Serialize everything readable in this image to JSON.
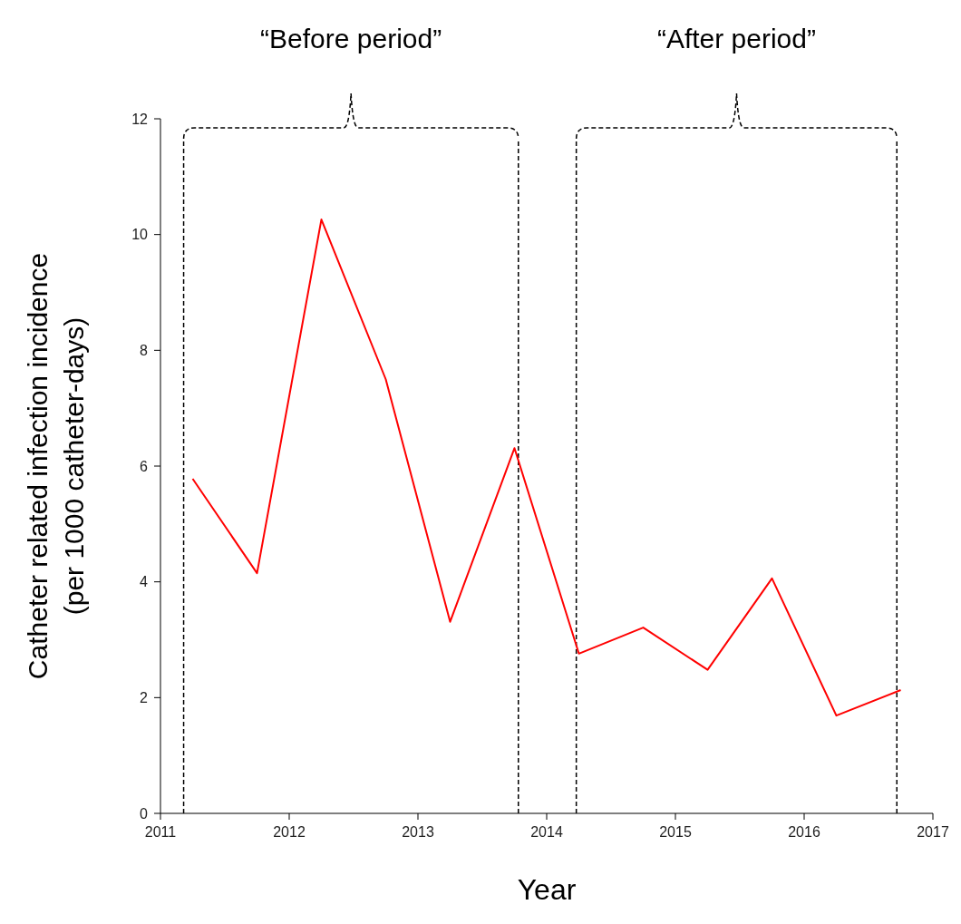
{
  "chart_data": {
    "type": "line",
    "xlabel": "Year",
    "ylabel": "Catheter related infection incidence\n(per 1000 catheter-days)",
    "x": [
      2011.25,
      2011.75,
      2012.25,
      2012.75,
      2013.25,
      2013.75,
      2014.25,
      2014.75,
      2015.25,
      2015.75,
      2016.25,
      2016.75
    ],
    "series": [
      {
        "color": "#ff0000",
        "values": [
          5.78,
          4.15,
          10.26,
          7.5,
          3.31,
          6.31,
          2.76,
          3.21,
          2.48,
          4.06,
          1.69,
          2.13
        ]
      }
    ],
    "xlim": [
      2011,
      2017
    ],
    "xticks": [
      2011,
      2012,
      2013,
      2014,
      2015,
      2016,
      2017
    ],
    "ylim": [
      0,
      12
    ],
    "yticks": [
      0,
      2,
      4,
      6,
      8,
      10,
      12
    ],
    "grid": false,
    "marker": "none",
    "line_style": "solid",
    "ref_lines": [
      {
        "axis": "x",
        "value": 2011.18,
        "color": "#000000",
        "line_style": "dashed"
      },
      {
        "axis": "x",
        "value": 2013.78,
        "color": "#000000",
        "line_style": "dashed"
      },
      {
        "axis": "x",
        "value": 2014.23,
        "color": "#000000",
        "line_style": "dashed"
      },
      {
        "axis": "x",
        "value": 2016.72,
        "color": "#000000",
        "line_style": "dashed"
      }
    ],
    "annotations": [
      "“Before period”",
      "“After period”"
    ]
  }
}
